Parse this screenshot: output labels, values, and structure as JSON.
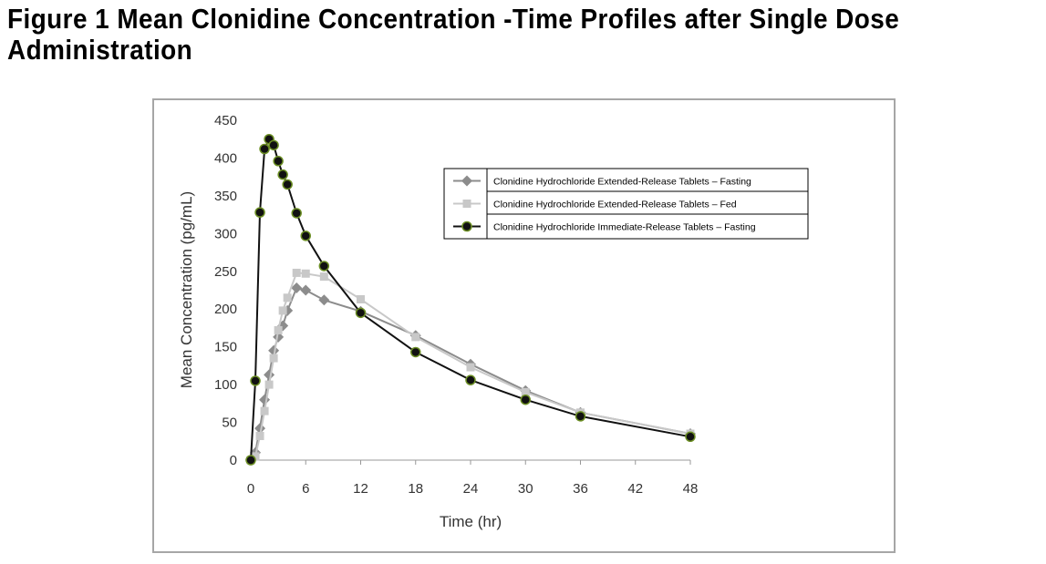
{
  "figure": {
    "title_line1": "Figure 1 Mean Clonidine Concentration -Time Profiles after Single Dose",
    "title_line2": "Administration"
  },
  "colors": {
    "fasting_er": "#8c8c8c",
    "fed_er": "#c8c8c8",
    "ir_fasting": "#111111",
    "ir_marker_ring": "#6b8e23",
    "axis": "#999999",
    "frame": "#a6a6a6"
  },
  "chart_data": {
    "type": "line",
    "title": "",
    "xlabel": "Time (hr)",
    "ylabel": "Mean Concentration (pg/mL)",
    "xlim": [
      0,
      48
    ],
    "ylim": [
      0,
      450
    ],
    "xticks": [
      0,
      6,
      12,
      18,
      24,
      30,
      36,
      42,
      48
    ],
    "yticks": [
      0,
      50,
      100,
      150,
      200,
      250,
      300,
      350,
      400,
      450
    ],
    "grid": false,
    "legend_position": "top-right",
    "series": [
      {
        "name": "Clonidine Hydrochloride Extended-Release Tablets – Fasting",
        "marker": "diamond",
        "x": [
          0,
          0.5,
          1,
          1.5,
          2,
          2.5,
          3,
          3.5,
          4,
          5,
          6,
          8,
          12,
          18,
          24,
          30,
          36,
          48
        ],
        "y": [
          0,
          10,
          42,
          80,
          113,
          145,
          163,
          178,
          198,
          228,
          225,
          212,
          197,
          165,
          127,
          92,
          63,
          35
        ]
      },
      {
        "name": "Clonidine Hydrochloride Extended-Release Tablets – Fed",
        "marker": "square",
        "x": [
          0,
          0.5,
          1,
          1.5,
          2,
          2.5,
          3,
          3.5,
          4,
          5,
          6,
          8,
          12,
          18,
          24,
          30,
          36,
          48
        ],
        "y": [
          0,
          5,
          32,
          65,
          100,
          135,
          172,
          198,
          215,
          248,
          247,
          243,
          213,
          163,
          123,
          90,
          63,
          35
        ]
      },
      {
        "name": "Clonidine Hydrochloride Immediate-Release Tablets – Fasting",
        "marker": "circle",
        "x": [
          0,
          0.5,
          1,
          1.5,
          2,
          2.5,
          3,
          3.5,
          4,
          5,
          6,
          8,
          12,
          18,
          24,
          30,
          36,
          48
        ],
        "y": [
          0,
          105,
          328,
          412,
          425,
          417,
          396,
          378,
          365,
          327,
          297,
          257,
          195,
          143,
          106,
          80,
          58,
          31
        ]
      }
    ]
  }
}
